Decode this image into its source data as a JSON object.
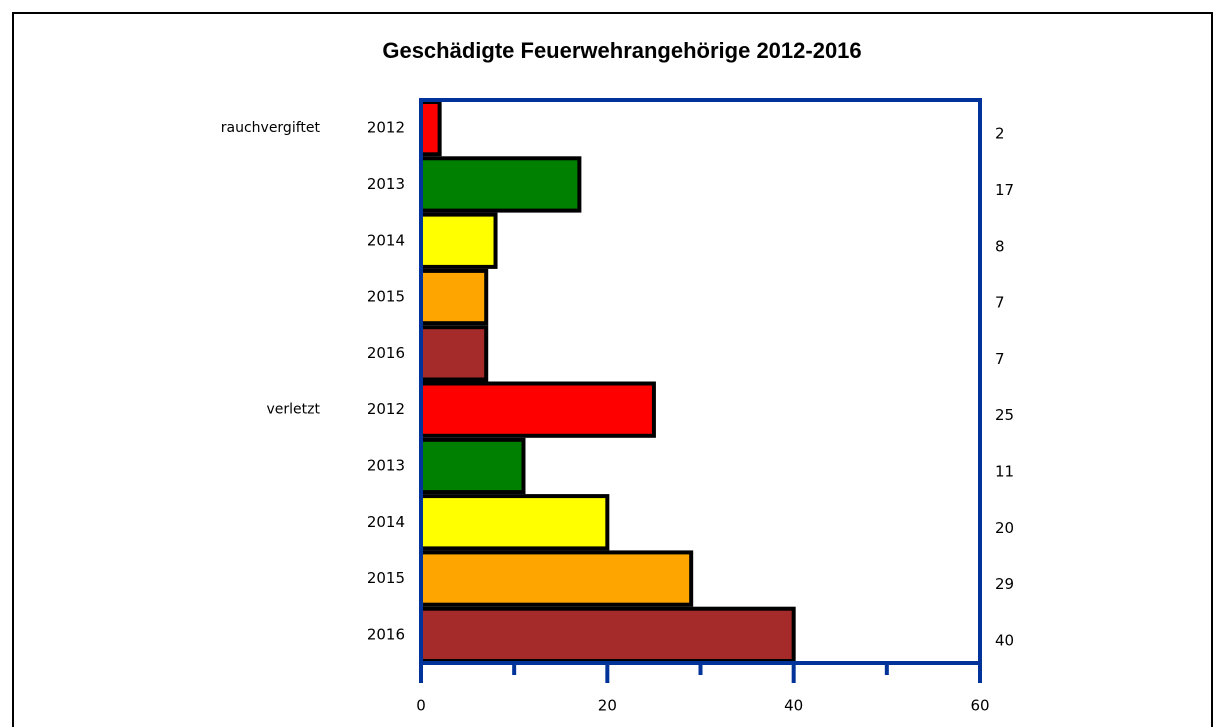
{
  "chart_data": {
    "type": "bar",
    "orientation": "horizontal",
    "title": "Geschädigte Feuerwehrangehörige 2012-2016",
    "categories": [
      "2012",
      "2013",
      "2014",
      "2015",
      "2016"
    ],
    "colors": [
      "#ff0000",
      "#008000",
      "#ffff00",
      "#ffa500",
      "#a52a2a"
    ],
    "series": [
      {
        "name": "rauchvergiftet",
        "values": [
          2,
          17,
          8,
          7,
          7
        ]
      },
      {
        "name": "verletzt",
        "values": [
          25,
          11,
          20,
          29,
          40
        ]
      }
    ],
    "xlim": [
      0,
      60
    ],
    "xticks": [
      0,
      20,
      40,
      60
    ],
    "xminorticks": [
      10,
      30,
      50
    ],
    "axis_color": "#003399",
    "value_labels_side": "right"
  }
}
